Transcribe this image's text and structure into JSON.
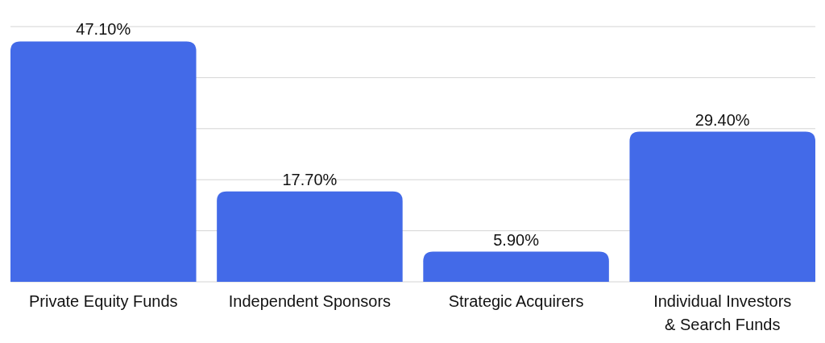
{
  "chart_data": {
    "type": "bar",
    "categories": [
      "Private Equity Funds",
      "Independent Sponsors",
      "Strategic Acquirers",
      "Individual Investors & Search Funds"
    ],
    "values": [
      47.1,
      17.7,
      5.9,
      29.4
    ],
    "value_labels": [
      "47.10%",
      "17.70%",
      "5.90%",
      "29.40%"
    ],
    "color": "#436ae8",
    "ylim": [
      0,
      50
    ],
    "yticks": [
      {
        "value": 0,
        "label": null
      },
      {
        "value": 10,
        "label": null
      },
      {
        "value": 20,
        "label": null
      },
      {
        "value": 30,
        "label": null
      },
      {
        "value": 40,
        "label": null
      },
      {
        "value": 50,
        "label": null
      }
    ],
    "grid": "y",
    "tick_labels": "x"
  }
}
